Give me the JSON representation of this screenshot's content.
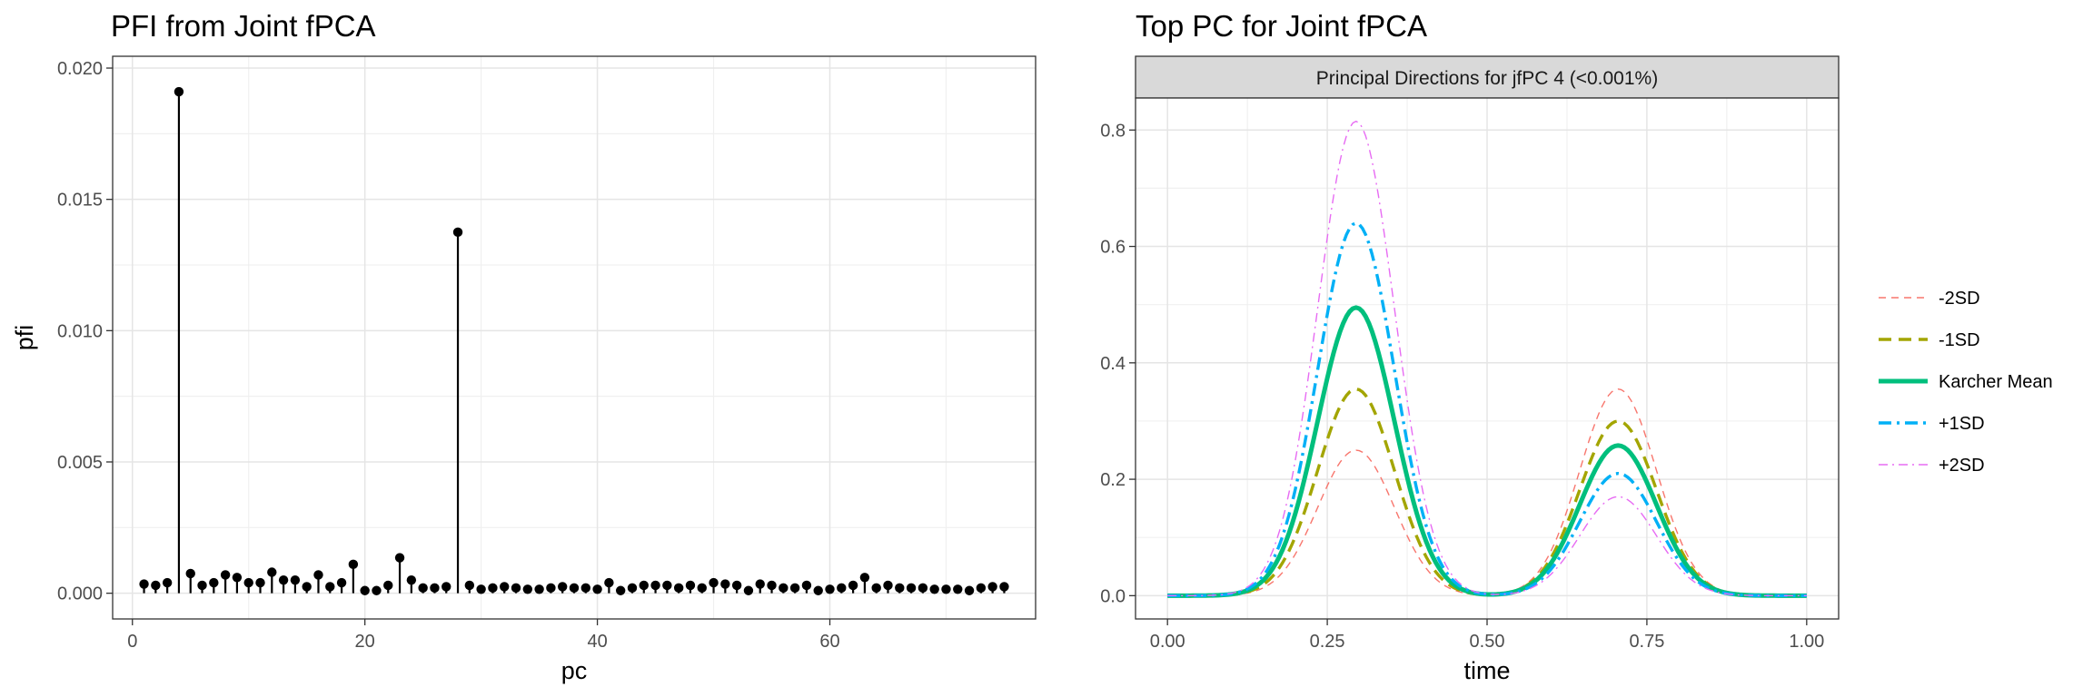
{
  "chart_data": [
    {
      "type": "lollipop",
      "title": "PFI from Joint fPCA",
      "xlabel": "pc",
      "ylabel": "pfi",
      "xlim": [
        -1.7,
        77.7
      ],
      "ylim": [
        -0.00098,
        0.02045
      ],
      "xticks": [
        0,
        20,
        40,
        60
      ],
      "xtick_labels": [
        "0",
        "20",
        "40",
        "60"
      ],
      "yticks": [
        0,
        0.005,
        0.01,
        0.015,
        0.02
      ],
      "ytick_labels": [
        "0.000",
        "0.005",
        "0.010",
        "0.015",
        "0.020"
      ],
      "grid": true,
      "x": [
        1,
        2,
        3,
        4,
        5,
        6,
        7,
        8,
        9,
        10,
        11,
        12,
        13,
        14,
        15,
        16,
        17,
        18,
        19,
        20,
        21,
        22,
        23,
        24,
        25,
        26,
        27,
        28,
        29,
        30,
        31,
        32,
        33,
        34,
        35,
        36,
        37,
        38,
        39,
        40,
        41,
        42,
        43,
        44,
        45,
        46,
        47,
        48,
        49,
        50,
        51,
        52,
        53,
        54,
        55,
        56,
        57,
        58,
        59,
        60,
        61,
        62,
        63,
        64,
        65,
        66,
        67,
        68,
        69,
        70,
        71,
        72,
        73,
        74,
        75
      ],
      "values": [
        0.00035,
        0.0003,
        0.0004,
        0.0191,
        0.00075,
        0.0003,
        0.0004,
        0.0007,
        0.0006,
        0.0004,
        0.0004,
        0.0008,
        0.0005,
        0.0005,
        0.00025,
        0.0007,
        0.00025,
        0.0004,
        0.0011,
        0.0001,
        0.0001,
        0.0003,
        0.00135,
        0.0005,
        0.0002,
        0.0002,
        0.00025,
        0.01375,
        0.0003,
        0.00015,
        0.0002,
        0.00025,
        0.0002,
        0.00015,
        0.00015,
        0.0002,
        0.00025,
        0.0002,
        0.0002,
        0.00015,
        0.0004,
        0.0001,
        0.0002,
        0.0003,
        0.0003,
        0.0003,
        0.0002,
        0.0003,
        0.0002,
        0.0004,
        0.00035,
        0.0003,
        0.0001,
        0.00035,
        0.0003,
        0.0002,
        0.0002,
        0.0003,
        0.0001,
        0.00015,
        0.0002,
        0.0003,
        0.0006,
        0.0002,
        0.0003,
        0.0002,
        0.0002,
        0.0002,
        0.00015,
        0.00015,
        0.00015,
        0.0001,
        0.0002,
        0.00025,
        0.00025
      ]
    },
    {
      "type": "line",
      "title": "Top PC for Joint fPCA",
      "strip_label": "Principal Directions for jfPC 4 (<0.001%)",
      "xlabel": "time",
      "ylabel": "",
      "xlim": [
        -0.05,
        1.05
      ],
      "ylim": [
        -0.04,
        0.855
      ],
      "xticks": [
        0,
        0.25,
        0.5,
        0.75,
        1
      ],
      "xtick_labels": [
        "0.00",
        "0.25",
        "0.50",
        "0.75",
        "1.00"
      ],
      "yticks": [
        0,
        0.2,
        0.4,
        0.6,
        0.8
      ],
      "ytick_labels": [
        "0.0",
        "0.2",
        "0.4",
        "0.6",
        "0.8"
      ],
      "grid": true,
      "legend_position": "right",
      "curve_shape": "two gaussian bumps at time 0.295 and 0.705 with sd 0.06 (values = peak1 and peak2 heights)",
      "series": [
        {
          "name": "-2SD",
          "color": "#F8766D",
          "linestyle": "dashed-thin",
          "peak1": 0.25,
          "peak2": 0.355
        },
        {
          "name": "-1SD",
          "color": "#A3A500",
          "linestyle": "dashed",
          "peak1": 0.355,
          "peak2": 0.3
        },
        {
          "name": "Karcher Mean",
          "color": "#00BF7D",
          "linestyle": "solid",
          "peak1": 0.495,
          "peak2": 0.258
        },
        {
          "name": "+1SD",
          "color": "#00B0F6",
          "linestyle": "dashdot",
          "peak1": 0.64,
          "peak2": 0.21
        },
        {
          "name": "+2SD",
          "color": "#E76BF3",
          "linestyle": "dashdot-thin",
          "peak1": 0.815,
          "peak2": 0.17
        }
      ]
    }
  ]
}
